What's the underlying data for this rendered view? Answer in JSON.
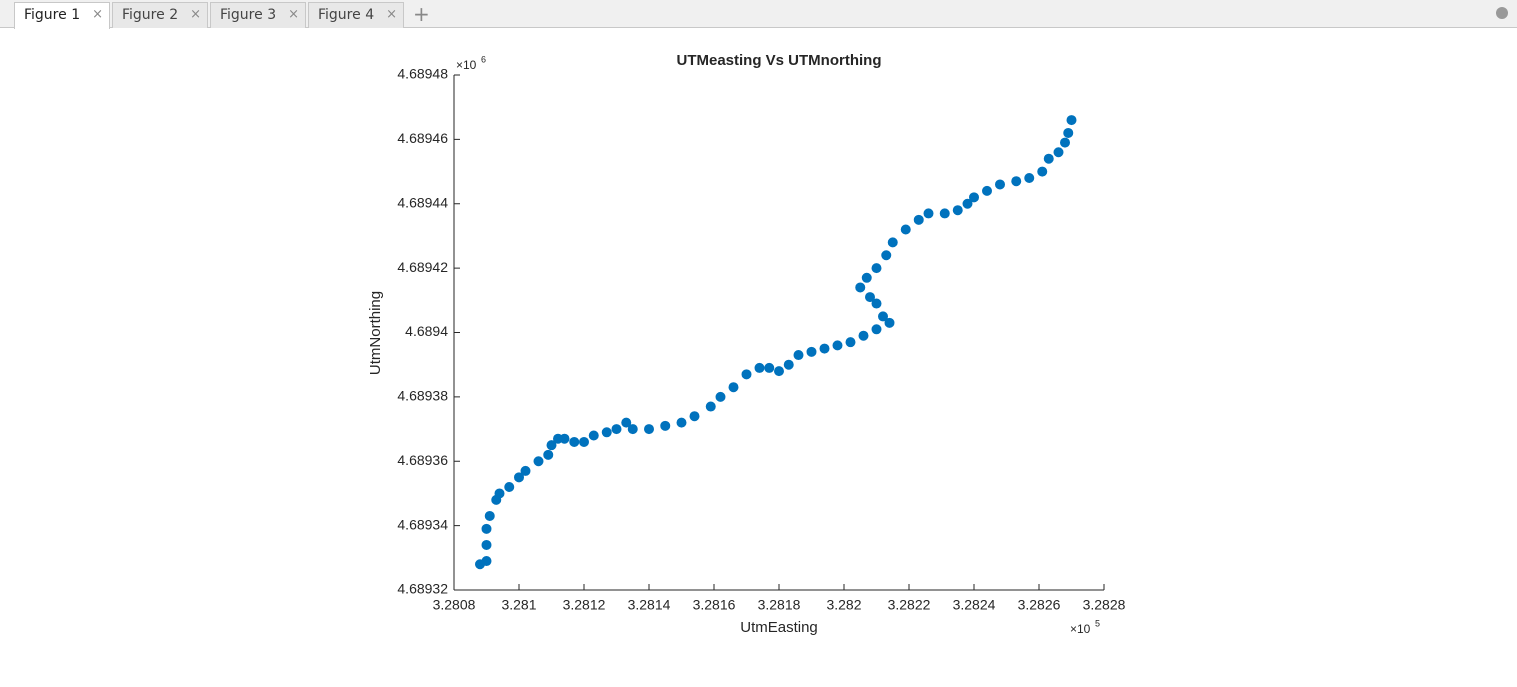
{
  "tabs": [
    "Figure 1",
    "Figure 2",
    "Figure 3",
    "Figure 4"
  ],
  "chart_data": {
    "type": "scatter",
    "title": "UTMeasting Vs UTMnorthing",
    "x_label": "UtmEasting",
    "y_label": "UtmNorthing",
    "x_multiplier": "×10",
    "x_exponent": "5",
    "y_multiplier": "×10",
    "y_exponent": "6",
    "color": "#0072bd",
    "xlim": [
      3.2808,
      3.2828
    ],
    "xticks": [
      3.2808,
      3.281,
      3.2812,
      3.2814,
      3.2816,
      3.2818,
      3.282,
      3.2822,
      3.2824,
      3.2826,
      3.2828
    ],
    "ylim": [
      4.68932,
      4.68948
    ],
    "yticks": [
      4.68932,
      4.68934,
      4.68936,
      4.68938,
      4.6894,
      4.68942,
      4.68944,
      4.68946,
      4.68948
    ],
    "x": [
      3.28088,
      3.2809,
      3.2809,
      3.2809,
      3.28091,
      3.28093,
      3.28094,
      3.28097,
      3.281,
      3.28102,
      3.28106,
      3.28109,
      3.2811,
      3.28112,
      3.28114,
      3.28117,
      3.2812,
      3.28123,
      3.28127,
      3.2813,
      3.28133,
      3.28135,
      3.2814,
      3.28145,
      3.2815,
      3.28154,
      3.28159,
      3.28162,
      3.28166,
      3.2817,
      3.28174,
      3.28177,
      3.2818,
      3.28183,
      3.28186,
      3.2819,
      3.28194,
      3.28198,
      3.28202,
      3.28206,
      3.2821,
      3.28214,
      3.28212,
      3.2821,
      3.28208,
      3.28205,
      3.28207,
      3.2821,
      3.28213,
      3.28215,
      3.28219,
      3.28223,
      3.28226,
      3.28231,
      3.28235,
      3.28238,
      3.2824,
      3.28244,
      3.28248,
      3.28253,
      3.28257,
      3.28261,
      3.28263,
      3.28266,
      3.28268,
      3.28269,
      3.2827
    ],
    "y": [
      4.689328,
      4.689329,
      4.689334,
      4.689339,
      4.689343,
      4.689348,
      4.68935,
      4.689352,
      4.689355,
      4.689357,
      4.68936,
      4.689362,
      4.689365,
      4.689367,
      4.689367,
      4.689366,
      4.689366,
      4.689368,
      4.689369,
      4.68937,
      4.689372,
      4.68937,
      4.68937,
      4.689371,
      4.689372,
      4.689374,
      4.689377,
      4.68938,
      4.689383,
      4.689387,
      4.689389,
      4.689389,
      4.689388,
      4.68939,
      4.689393,
      4.689394,
      4.689395,
      4.689396,
      4.689397,
      4.689399,
      4.689401,
      4.689403,
      4.689405,
      4.689409,
      4.689411,
      4.689414,
      4.689417,
      4.68942,
      4.689424,
      4.689428,
      4.689432,
      4.689435,
      4.689437,
      4.689437,
      4.689438,
      4.68944,
      4.689442,
      4.689444,
      4.689446,
      4.689447,
      4.689448,
      4.68945,
      4.689454,
      4.689456,
      4.689459,
      4.689462,
      4.689466
    ]
  }
}
